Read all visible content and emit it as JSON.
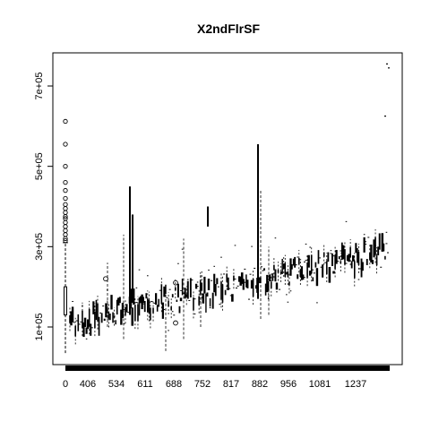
{
  "chart_data": {
    "type": "boxplot",
    "title": "X2ndFlrSF",
    "xlabel": "",
    "ylabel": "",
    "x_tick_labels": [
      "0",
      "406",
      "534",
      "611",
      "688",
      "752",
      "817",
      "882",
      "956",
      "1081",
      "1237"
    ],
    "y_tick_labels": [
      "1e+05",
      "3e+05",
      "5e+05",
      "7e+05"
    ],
    "y_ticks": [
      100000,
      300000,
      500000,
      700000
    ],
    "ylim": [
      0,
      780000
    ],
    "grid": false,
    "legend": "none",
    "first_box": {
      "category": "0",
      "lower_whisker": 35000,
      "q1": 130000,
      "median": 145000,
      "q3": 200000,
      "upper_whisker": 310000,
      "outliers": [
        315000,
        320000,
        330000,
        340000,
        350000,
        360000,
        370000,
        375000,
        385000,
        395000,
        405000,
        420000,
        440000,
        460000,
        500000,
        555000,
        612000
      ]
    },
    "highlighted_points": [
      {
        "category": "406",
        "value": 220000
      },
      {
        "category": "688",
        "value": 210000
      },
      {
        "category": "688",
        "value": 110000
      }
    ],
    "trend": {
      "start_value": 110000,
      "end_value": 290000
    },
    "tall_boxes": [
      {
        "category": "534",
        "value_low": 130000,
        "value_high": 450000
      },
      {
        "category": "611",
        "value_low": 160000,
        "value_high": 380000
      },
      {
        "category": "752",
        "value_low": 350000,
        "value_high": 400000
      },
      {
        "category": "882",
        "value_low": 170000,
        "value_high": 555000
      }
    ],
    "max_points": [
      755000,
      745000,
      625000
    ]
  }
}
